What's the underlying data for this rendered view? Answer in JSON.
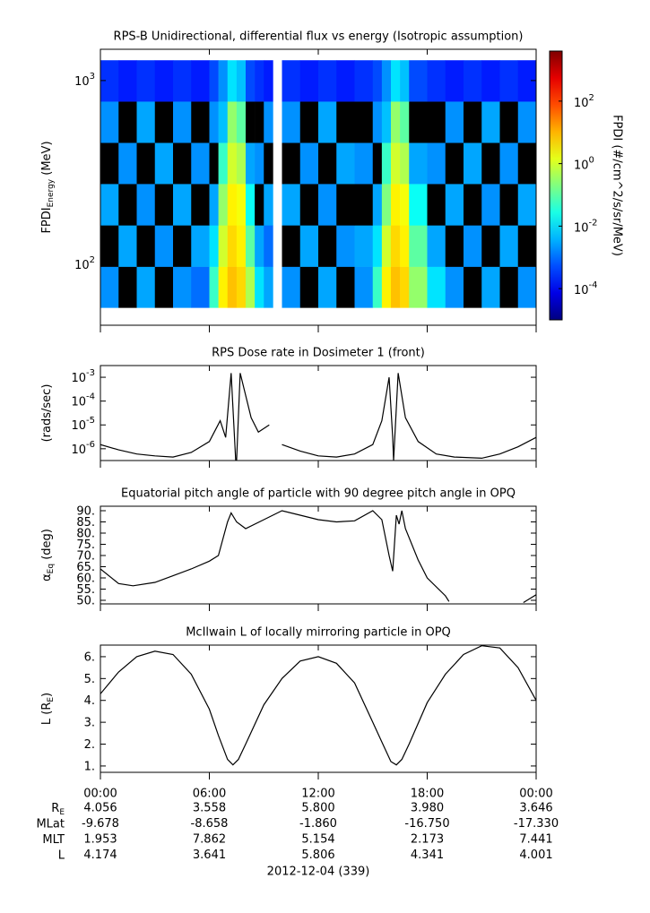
{
  "chart_data": [
    {
      "type": "heatmap",
      "title": "RPS-B  Unidirectional, differential flux vs energy (Isotropic assumption)",
      "ylabel": [
        "FPDI",
        "Energy",
        " (MeV)"
      ],
      "xlim": [
        0,
        24
      ],
      "ylim": [
        46.5,
        1480
      ],
      "ylog": true,
      "yticks": [
        {
          "value": 1000,
          "label": "10^3"
        },
        {
          "value": 100,
          "label": "10^2"
        }
      ],
      "xbins": [
        0,
        1,
        2,
        3,
        4,
        5,
        6,
        6.5,
        7,
        7.5,
        8,
        8.5,
        9,
        9.5,
        10,
        11,
        12,
        13,
        14,
        15,
        15.5,
        16,
        16.5,
        17,
        18,
        19,
        20,
        21,
        22,
        23,
        24
      ],
      "ybins": [
        58,
        97,
        163,
        274,
        459,
        770,
        1290
      ],
      "values": [
        [
          0.002,
          0,
          0.003,
          0,
          0.002,
          0.001,
          0.05,
          3,
          8,
          5,
          0.5,
          0.01,
          0.003,
          null,
          0.002,
          0,
          0.003,
          0,
          0.002,
          0.05,
          3,
          8,
          5,
          0.3,
          0.01,
          0.002,
          0,
          0.003,
          0,
          0.002
        ],
        [
          0,
          0.003,
          0,
          0.002,
          0,
          0.003,
          0.01,
          1,
          5,
          3,
          0.1,
          0.003,
          0.001,
          null,
          0,
          0.003,
          0,
          0.002,
          0.003,
          0.01,
          1,
          5,
          3,
          0.1,
          0.003,
          0,
          0.002,
          0,
          0.003,
          0
        ],
        [
          0.003,
          0,
          0.002,
          0,
          0.003,
          0,
          0.003,
          0.3,
          3,
          2,
          0.02,
          0,
          0.003,
          null,
          0.003,
          0,
          0.002,
          0,
          0,
          0.003,
          0.2,
          3,
          2,
          0.02,
          0,
          0.003,
          0,
          0.002,
          0,
          0.003
        ],
        [
          0,
          0.002,
          0,
          0.003,
          0,
          0.002,
          0,
          0.05,
          1,
          0.5,
          0.003,
          0.002,
          0,
          null,
          0,
          0.002,
          0,
          0.003,
          0.002,
          0,
          0.05,
          1,
          0.5,
          0.003,
          0.002,
          0,
          0.003,
          0,
          0.002,
          0
        ],
        [
          0.002,
          0,
          0.003,
          0,
          0.002,
          0,
          0.002,
          0.005,
          0.3,
          0.1,
          0,
          0,
          0.002,
          null,
          0.002,
          0,
          0.003,
          0,
          0,
          0.002,
          0.005,
          0.3,
          0.1,
          0,
          0,
          0.002,
          0,
          0.003,
          0,
          0.002
        ],
        [
          0.0003,
          0.0002,
          0.0003,
          0.0002,
          0.0003,
          0.0002,
          0.0005,
          0.002,
          0.01,
          0.005,
          0.0005,
          0.0003,
          0.0002,
          null,
          0.0003,
          0.0002,
          0.0003,
          0.0002,
          0.0003,
          0.0005,
          0.002,
          0.01,
          0.005,
          0.0005,
          0.0003,
          0.0002,
          0.0003,
          0.0002,
          0.0003,
          0.0002
        ]
      ],
      "colormap": "jet",
      "clim": [
        1e-05,
        4000
      ],
      "cticks": [
        {
          "value": 100,
          "label": "10^2"
        },
        {
          "value": 1,
          "label": "10^0"
        },
        {
          "value": 0.01,
          "label": "10^-2"
        },
        {
          "value": 0.0001,
          "label": "10^-4"
        }
      ],
      "clabel": "FPDI (#/cm^2/s/sr/MeV)"
    },
    {
      "type": "line",
      "title": "RPS  Dose rate in Dosimeter 1 (front)",
      "ylabel": [
        "(rads/sec)"
      ],
      "xlim": [
        0,
        24
      ],
      "ylim": [
        3.2e-07,
        0.0031
      ],
      "ylog": true,
      "yticks": [
        {
          "value": 0.001,
          "label": "10^-3"
        },
        {
          "value": 0.0001,
          "label": "10^-4"
        },
        {
          "value": 1e-05,
          "label": "10^-5"
        },
        {
          "value": 1e-06,
          "label": "10^-6"
        }
      ],
      "color": "#000000",
      "x": [
        0,
        1,
        2,
        3,
        4,
        5,
        6,
        6.6,
        6.9,
        7.2,
        7.45,
        7.5,
        7.7,
        8.3,
        8.7,
        9.3,
        9.5,
        10,
        11,
        12,
        13,
        14,
        15,
        15.5,
        15.9,
        16.1,
        16.15,
        16.4,
        16.8,
        17.5,
        18.5,
        19.5,
        21,
        22,
        23,
        24
      ],
      "values": [
        1.5e-06,
        9e-07,
        6e-07,
        5e-07,
        4.5e-07,
        7e-07,
        2e-06,
        1.5e-05,
        3e-06,
        0.0015,
        3.2e-07,
        3.2e-07,
        0.0015,
        2e-05,
        5e-06,
        1e-05,
        null,
        1.5e-06,
        8e-07,
        5e-07,
        4.5e-07,
        6e-07,
        1.5e-06,
        1.5e-05,
        0.001,
        3e-06,
        3.2e-07,
        0.0015,
        2e-05,
        2e-06,
        6e-07,
        4.5e-07,
        4e-07,
        6e-07,
        1.2e-06,
        3e-06
      ]
    },
    {
      "type": "line",
      "title": "Equatorial pitch angle of particle with 90 degree pitch angle in OPQ",
      "ylabel": [
        "α",
        "Eq",
        " (deg)"
      ],
      "xlim": [
        0,
        24
      ],
      "ylim": [
        48.4,
        92
      ],
      "ylog": false,
      "yticks": [
        {
          "value": 90,
          "label": "90."
        },
        {
          "value": 85,
          "label": "85."
        },
        {
          "value": 80,
          "label": "80."
        },
        {
          "value": 75,
          "label": "75."
        },
        {
          "value": 70,
          "label": "70."
        },
        {
          "value": 65,
          "label": "65."
        },
        {
          "value": 60,
          "label": "60."
        },
        {
          "value": 55,
          "label": "55."
        },
        {
          "value": 50,
          "label": "50."
        }
      ],
      "color": "#000000",
      "x": [
        0,
        1,
        1.8,
        3,
        4,
        5,
        6,
        6.5,
        7,
        7.2,
        7.5,
        8,
        9,
        10,
        11,
        12,
        13,
        14,
        15,
        15.5,
        15.9,
        16.1,
        16.3,
        16.45,
        16.6,
        16.8,
        17.5,
        18,
        19,
        19.2,
        20,
        23.3,
        23.5,
        24
      ],
      "values": [
        64,
        57.5,
        56.5,
        58,
        61,
        64,
        67.5,
        70,
        85,
        89,
        85,
        82,
        86,
        90,
        88,
        86,
        85,
        85.5,
        90,
        86,
        70,
        63,
        88,
        84,
        90,
        82,
        68,
        60,
        52,
        49.5,
        null,
        49,
        50,
        52.5
      ]
    },
    {
      "type": "line",
      "title": "McIlwain L of locally mirroring particle in OPQ",
      "ylabel": [
        "L (R",
        "E",
        ")"
      ],
      "xlim": [
        0,
        24
      ],
      "ylim": [
        0.71,
        6.53
      ],
      "ylog": false,
      "yticks": [
        {
          "value": 6,
          "label": "6."
        },
        {
          "value": 5,
          "label": "5."
        },
        {
          "value": 4,
          "label": "4."
        },
        {
          "value": 3,
          "label": "3."
        },
        {
          "value": 2,
          "label": "2."
        },
        {
          "value": 1,
          "label": "1."
        }
      ],
      "xticks": [
        {
          "value": 0,
          "label": "00:00"
        },
        {
          "value": 6,
          "label": "06:00"
        },
        {
          "value": 12,
          "label": "12:00"
        },
        {
          "value": 18,
          "label": "18:00"
        },
        {
          "value": 24,
          "label": "00:00"
        }
      ],
      "color": "#000000",
      "x": [
        0,
        1,
        2,
        3,
        4,
        5,
        6,
        6.5,
        7,
        7.3,
        7.6,
        8,
        9,
        10,
        11,
        12,
        13,
        14,
        15,
        15.5,
        16,
        16.3,
        16.6,
        17,
        18,
        19,
        20,
        21,
        22,
        23,
        24
      ],
      "values": [
        4.3,
        5.3,
        6.0,
        6.25,
        6.1,
        5.2,
        3.6,
        2.4,
        1.3,
        1.05,
        1.3,
        2.0,
        3.8,
        5.0,
        5.8,
        6.0,
        5.7,
        4.8,
        3.0,
        2.1,
        1.2,
        1.05,
        1.3,
        2.0,
        3.9,
        5.2,
        6.1,
        6.5,
        6.4,
        5.5,
        4.0
      ]
    }
  ],
  "ephemeris": {
    "rows": [
      {
        "label": [
          "R",
          "E"
        ],
        "values": [
          "4.056",
          "3.558",
          "5.800",
          "3.980",
          "3.646"
        ]
      },
      {
        "label": [
          "MLat"
        ],
        "values": [
          "-9.678",
          "-8.658",
          "-1.860",
          "-16.750",
          "-17.330"
        ]
      },
      {
        "label": [
          "MLT"
        ],
        "values": [
          "1.953",
          "7.862",
          "5.154",
          "2.173",
          "7.441"
        ]
      },
      {
        "label": [
          "L"
        ],
        "values": [
          "4.174",
          "3.641",
          "5.806",
          "4.341",
          "4.001"
        ]
      }
    ],
    "date": "2012-12-04 (339)"
  }
}
